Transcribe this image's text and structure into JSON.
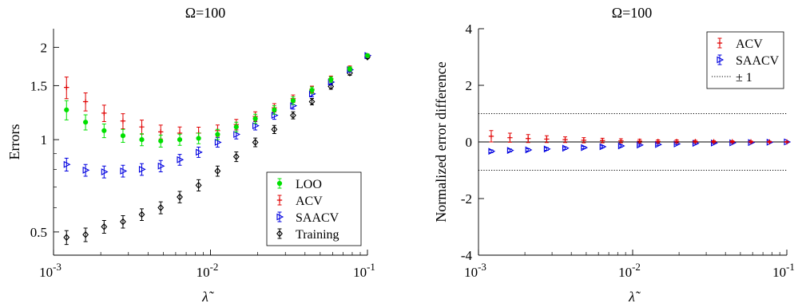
{
  "colors": {
    "loo": "#00e000",
    "acv": "#e00000",
    "saacv": "#0000e0",
    "training": "#000000",
    "reference": "#000000"
  },
  "chart_data": [
    {
      "type": "scatter",
      "title": "Ω=100",
      "xlabel": "λ̃",
      "ylabel": "Errors",
      "xscale": "log",
      "yscale": "log",
      "xlim": [
        0.001,
        0.1
      ],
      "ylim": [
        0.42,
        2.3
      ],
      "xticks": [
        0.001,
        0.01,
        0.1
      ],
      "xtick_labels": [
        {
          "base": "10",
          "exp": "-3"
        },
        {
          "base": "10",
          "exp": "-2"
        },
        {
          "base": "10",
          "exp": "-1"
        }
      ],
      "yticks": [
        0.5,
        1,
        1.5,
        2
      ],
      "ytick_labels": [
        "0.5",
        "1",
        "1.5",
        "2"
      ],
      "legend_position": "bottom-right",
      "x": [
        0.00121,
        0.0016,
        0.0021,
        0.00277,
        0.00365,
        0.00482,
        0.00637,
        0.0084,
        0.0111,
        0.0146,
        0.0193,
        0.0255,
        0.0336,
        0.0443,
        0.0585,
        0.0772,
        0.1
      ],
      "series": [
        {
          "name": "LOO",
          "marker": "dot",
          "values": [
            1.25,
            1.14,
            1.07,
            1.03,
            1.0,
            0.99,
            1.0,
            1.01,
            1.04,
            1.1,
            1.17,
            1.25,
            1.34,
            1.45,
            1.57,
            1.7,
            1.88
          ],
          "err": [
            0.09,
            0.065,
            0.055,
            0.05,
            0.045,
            0.045,
            0.042,
            0.04,
            0.04,
            0.04,
            0.04,
            0.04,
            0.038,
            0.035,
            0.032,
            0.028,
            0.022
          ]
        },
        {
          "name": "ACV",
          "marker": "plus",
          "values": [
            1.48,
            1.33,
            1.22,
            1.15,
            1.1,
            1.06,
            1.05,
            1.05,
            1.07,
            1.12,
            1.19,
            1.27,
            1.36,
            1.46,
            1.58,
            1.71,
            1.88
          ],
          "err": [
            0.12,
            0.09,
            0.075,
            0.065,
            0.058,
            0.055,
            0.05,
            0.048,
            0.046,
            0.044,
            0.042,
            0.04,
            0.038,
            0.035,
            0.032,
            0.028,
            0.022
          ]
        },
        {
          "name": "SAACV",
          "marker": "triangle-right",
          "values": [
            0.83,
            0.795,
            0.785,
            0.79,
            0.8,
            0.82,
            0.86,
            0.91,
            0.98,
            1.04,
            1.11,
            1.2,
            1.29,
            1.41,
            1.54,
            1.69,
            1.88
          ],
          "err": [
            0.04,
            0.035,
            0.035,
            0.035,
            0.035,
            0.035,
            0.035,
            0.035,
            0.035,
            0.035,
            0.035,
            0.035,
            0.033,
            0.032,
            0.03,
            0.028,
            0.022
          ]
        },
        {
          "name": "Training",
          "marker": "diamond",
          "values": [
            0.48,
            0.49,
            0.52,
            0.54,
            0.57,
            0.6,
            0.65,
            0.71,
            0.79,
            0.88,
            0.98,
            1.08,
            1.2,
            1.33,
            1.49,
            1.65,
            1.86
          ],
          "err": [
            0.025,
            0.025,
            0.025,
            0.025,
            0.025,
            0.027,
            0.028,
            0.03,
            0.03,
            0.032,
            0.032,
            0.033,
            0.032,
            0.032,
            0.03,
            0.028,
            0.022
          ]
        }
      ]
    },
    {
      "type": "scatter",
      "title": "Ω=100",
      "xlabel": "λ̃",
      "ylabel": "Normalized error difference",
      "xscale": "log",
      "yscale": "linear",
      "xlim": [
        0.001,
        0.1
      ],
      "ylim": [
        -4,
        4
      ],
      "xticks": [
        0.001,
        0.01,
        0.1
      ],
      "xtick_labels": [
        {
          "base": "10",
          "exp": "-3"
        },
        {
          "base": "10",
          "exp": "-2"
        },
        {
          "base": "10",
          "exp": "-1"
        }
      ],
      "yticks": [
        -4,
        -2,
        0,
        2,
        4
      ],
      "ytick_labels": [
        "-4",
        "-2",
        "0",
        "2",
        "4"
      ],
      "legend_position": "top-right",
      "x": [
        0.00121,
        0.0016,
        0.0021,
        0.00277,
        0.00365,
        0.00482,
        0.00637,
        0.0084,
        0.0111,
        0.0146,
        0.0193,
        0.0255,
        0.0336,
        0.0443,
        0.0585,
        0.0772,
        0.1
      ],
      "series": [
        {
          "name": "ACV",
          "marker": "plus",
          "values": [
            0.2,
            0.15,
            0.12,
            0.1,
            0.08,
            0.06,
            0.05,
            0.04,
            0.03,
            0.02,
            0.02,
            0.015,
            0.01,
            0.01,
            0.005,
            0.003,
            0.0
          ],
          "err": [
            0.2,
            0.16,
            0.14,
            0.12,
            0.1,
            0.09,
            0.08,
            0.07,
            0.06,
            0.05,
            0.05,
            0.04,
            0.035,
            0.03,
            0.025,
            0.02,
            0.01
          ]
        },
        {
          "name": "SAACV",
          "marker": "triangle-right",
          "values": [
            -0.33,
            -0.3,
            -0.28,
            -0.25,
            -0.22,
            -0.2,
            -0.17,
            -0.14,
            -0.11,
            -0.09,
            -0.07,
            -0.05,
            -0.04,
            -0.03,
            -0.02,
            -0.01,
            0.0
          ],
          "err": [
            0.05,
            0.05,
            0.045,
            0.045,
            0.04,
            0.04,
            0.035,
            0.035,
            0.03,
            0.03,
            0.025,
            0.025,
            0.02,
            0.02,
            0.015,
            0.01,
            0.01
          ]
        }
      ],
      "reference_lines": [
        {
          "y": 0,
          "style": "solid"
        },
        {
          "y": 1,
          "style": "dotted"
        },
        {
          "y": -1,
          "style": "dotted"
        }
      ],
      "reference_legend_label": "± 1"
    }
  ]
}
